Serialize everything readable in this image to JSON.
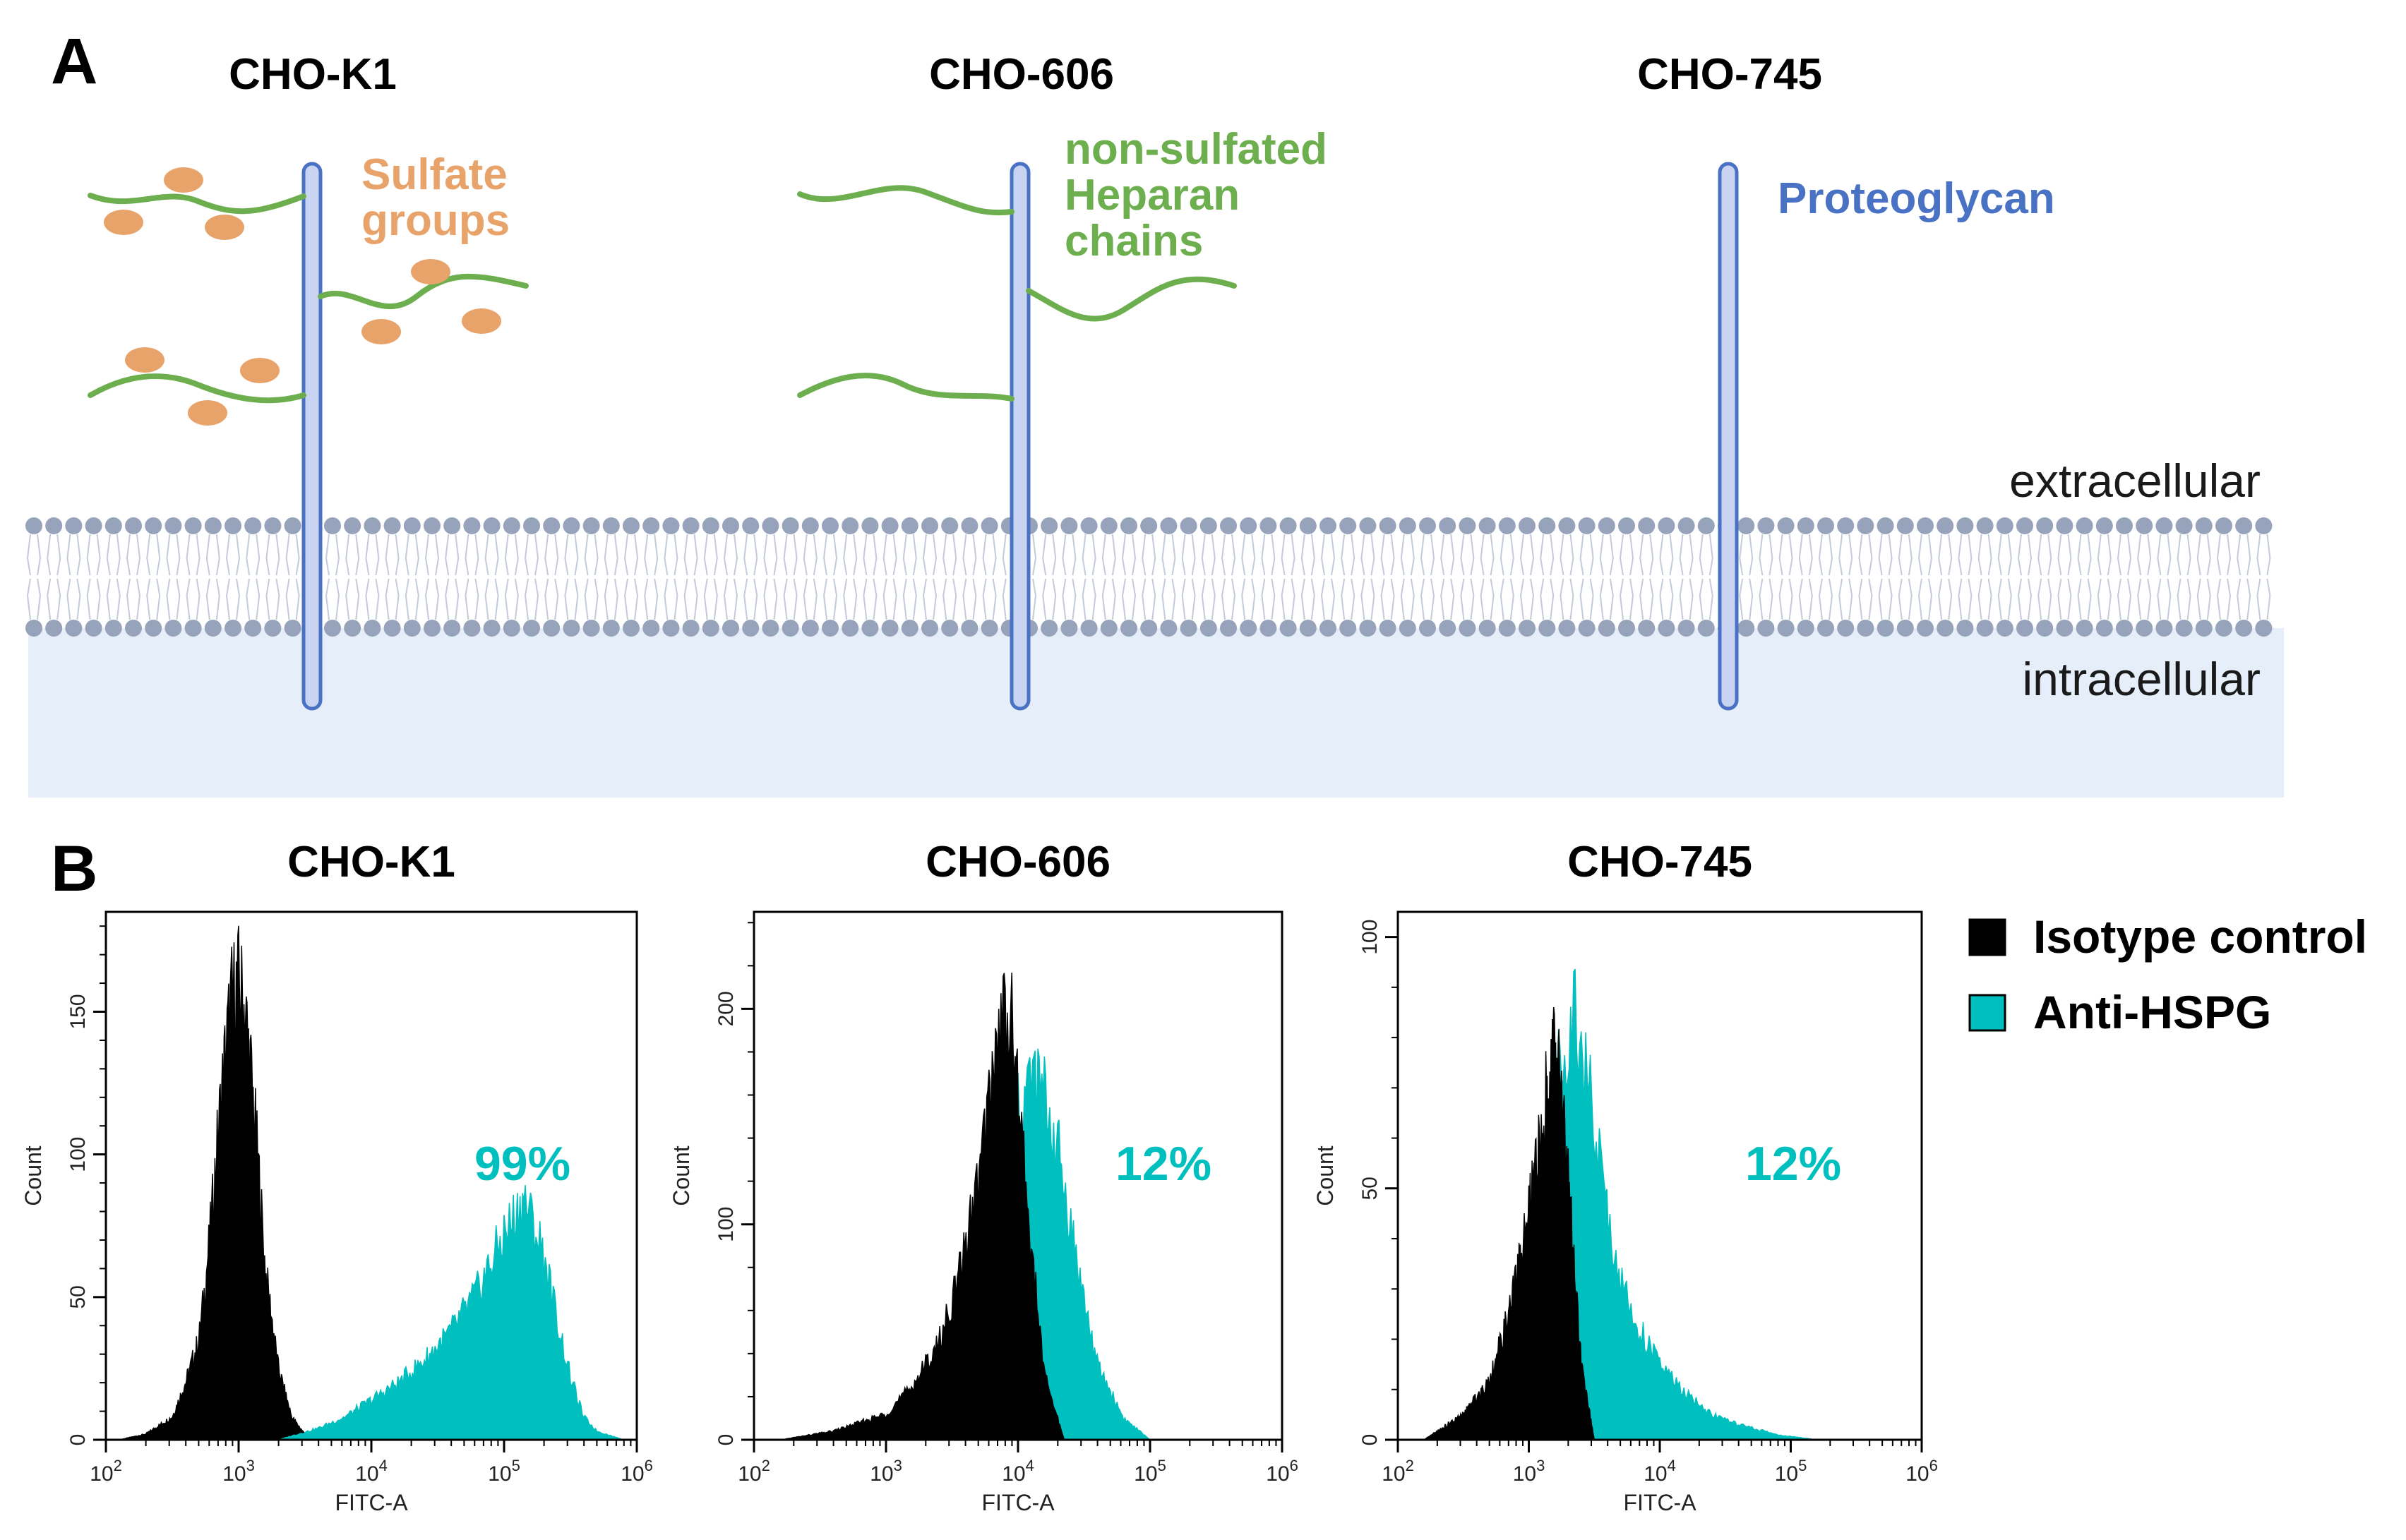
{
  "panel_a": {
    "letter": "A",
    "cells": [
      {
        "title": "CHO-K1",
        "modification": "sulfated heparan chains"
      },
      {
        "title": "CHO-606",
        "modification": "non-sulfated heparan chains"
      },
      {
        "title": "CHO-745",
        "modification": "no heparan chains"
      }
    ],
    "labels": {
      "sulfate_line1": "Sulfate",
      "sulfate_line2": "groups",
      "nonsulf_line1": "non-sulfated",
      "nonsulf_line2": "Heparan",
      "nonsulf_line3": "chains",
      "proteoglycan": "Proteoglycan",
      "extracellular": "extracellular",
      "intracellular": "intracellular"
    },
    "colors": {
      "sulfate": "#E8A36B",
      "heparan": "#6DAF4E",
      "proteoglycan": "#4A72C4",
      "proteoglycan_fill": "#C8D4F2",
      "lipid": "#96A3BB",
      "cytoplasm": "#E6EFF9"
    }
  },
  "panel_b": {
    "letter": "B",
    "legend": [
      {
        "label": "Isotype control",
        "color": "#000000"
      },
      {
        "label": "Anti-HSPG",
        "color": "#00BFBF"
      }
    ]
  },
  "chart_data": [
    {
      "type": "histogram",
      "title": "CHO-K1",
      "xlabel": "FITC-A",
      "ylabel": "Count",
      "x_scale": "log10",
      "xlim_log10": [
        2,
        6
      ],
      "xticks": [
        "10^2",
        "10^3",
        "10^4",
        "10^5",
        "10^6"
      ],
      "ylim": [
        0,
        185
      ],
      "yticks": [
        0,
        50,
        100,
        150
      ],
      "annotation": "99%",
      "series": [
        {
          "name": "Isotype control",
          "color": "#000000",
          "x_log10": [
            2.1,
            2.3,
            2.5,
            2.6,
            2.7,
            2.75,
            2.8,
            2.85,
            2.9,
            2.95,
            3.0,
            3.05,
            3.1,
            3.15,
            3.2,
            3.3,
            3.4,
            3.5,
            3.6
          ],
          "counts": [
            0,
            2,
            8,
            20,
            35,
            55,
            80,
            110,
            135,
            155,
            160,
            150,
            125,
            95,
            60,
            25,
            8,
            2,
            0
          ]
        },
        {
          "name": "Anti-HSPG",
          "color": "#00BFBF",
          "x_log10": [
            3.3,
            3.6,
            3.8,
            4.0,
            4.2,
            4.4,
            4.6,
            4.8,
            4.9,
            5.0,
            5.1,
            5.15,
            5.2,
            5.3,
            5.4,
            5.5,
            5.6,
            5.7,
            5.9
          ],
          "counts": [
            0,
            4,
            8,
            14,
            20,
            28,
            38,
            52,
            62,
            72,
            80,
            85,
            78,
            65,
            42,
            22,
            8,
            3,
            0
          ]
        }
      ]
    },
    {
      "type": "histogram",
      "title": "CHO-606",
      "xlabel": "FITC-A",
      "ylabel": "Count",
      "x_scale": "log10",
      "xlim_log10": [
        2,
        6
      ],
      "xticks": [
        "10^2",
        "10^3",
        "10^4",
        "10^5",
        "10^6"
      ],
      "ylim": [
        0,
        245
      ],
      "yticks": [
        0,
        100,
        200
      ],
      "annotation": "12%",
      "series": [
        {
          "name": "Anti-HSPG",
          "color": "#00BFBF",
          "x_log10": [
            2.4,
            2.8,
            3.1,
            3.3,
            3.5,
            3.7,
            3.85,
            4.0,
            4.1,
            4.2,
            4.3,
            4.4,
            4.5,
            4.6,
            4.8,
            5.0
          ],
          "counts": [
            0,
            5,
            12,
            25,
            45,
            80,
            115,
            150,
            168,
            160,
            135,
            100,
            65,
            35,
            10,
            0
          ]
        },
        {
          "name": "Isotype control",
          "color": "#000000",
          "x_log10": [
            2.2,
            2.6,
            3.0,
            3.2,
            3.4,
            3.55,
            3.7,
            3.8,
            3.85,
            3.9,
            3.95,
            4.0,
            4.1,
            4.2,
            4.35
          ],
          "counts": [
            0,
            4,
            12,
            25,
            45,
            75,
            120,
            165,
            190,
            200,
            195,
            160,
            90,
            30,
            0
          ]
        }
      ]
    },
    {
      "type": "histogram",
      "title": "CHO-745",
      "xlabel": "FITC-A",
      "ylabel": "Count",
      "x_scale": "log10",
      "xlim_log10": [
        2,
        6
      ],
      "xticks": [
        "10^2",
        "10^3",
        "10^4",
        "10^5",
        "10^6"
      ],
      "ylim": [
        0,
        105
      ],
      "yticks": [
        0,
        50,
        100
      ],
      "annotation": "12%",
      "series": [
        {
          "name": "Anti-HSPG",
          "color": "#00BFBF",
          "x_log10": [
            2.2,
            2.6,
            2.8,
            3.0,
            3.1,
            3.2,
            3.3,
            3.35,
            3.4,
            3.5,
            3.6,
            3.7,
            3.8,
            4.0,
            4.2,
            4.4,
            4.6,
            4.9,
            5.2
          ],
          "counts": [
            0,
            5,
            12,
            30,
            50,
            70,
            83,
            86,
            80,
            62,
            45,
            32,
            24,
            15,
            9,
            5,
            3,
            1,
            0
          ]
        },
        {
          "name": "Isotype control",
          "color": "#000000",
          "x_log10": [
            2.2,
            2.5,
            2.7,
            2.85,
            3.0,
            3.1,
            3.15,
            3.2,
            3.25,
            3.3,
            3.4,
            3.5
          ],
          "counts": [
            0,
            5,
            12,
            25,
            45,
            62,
            72,
            78,
            72,
            52,
            15,
            0
          ]
        }
      ]
    }
  ]
}
